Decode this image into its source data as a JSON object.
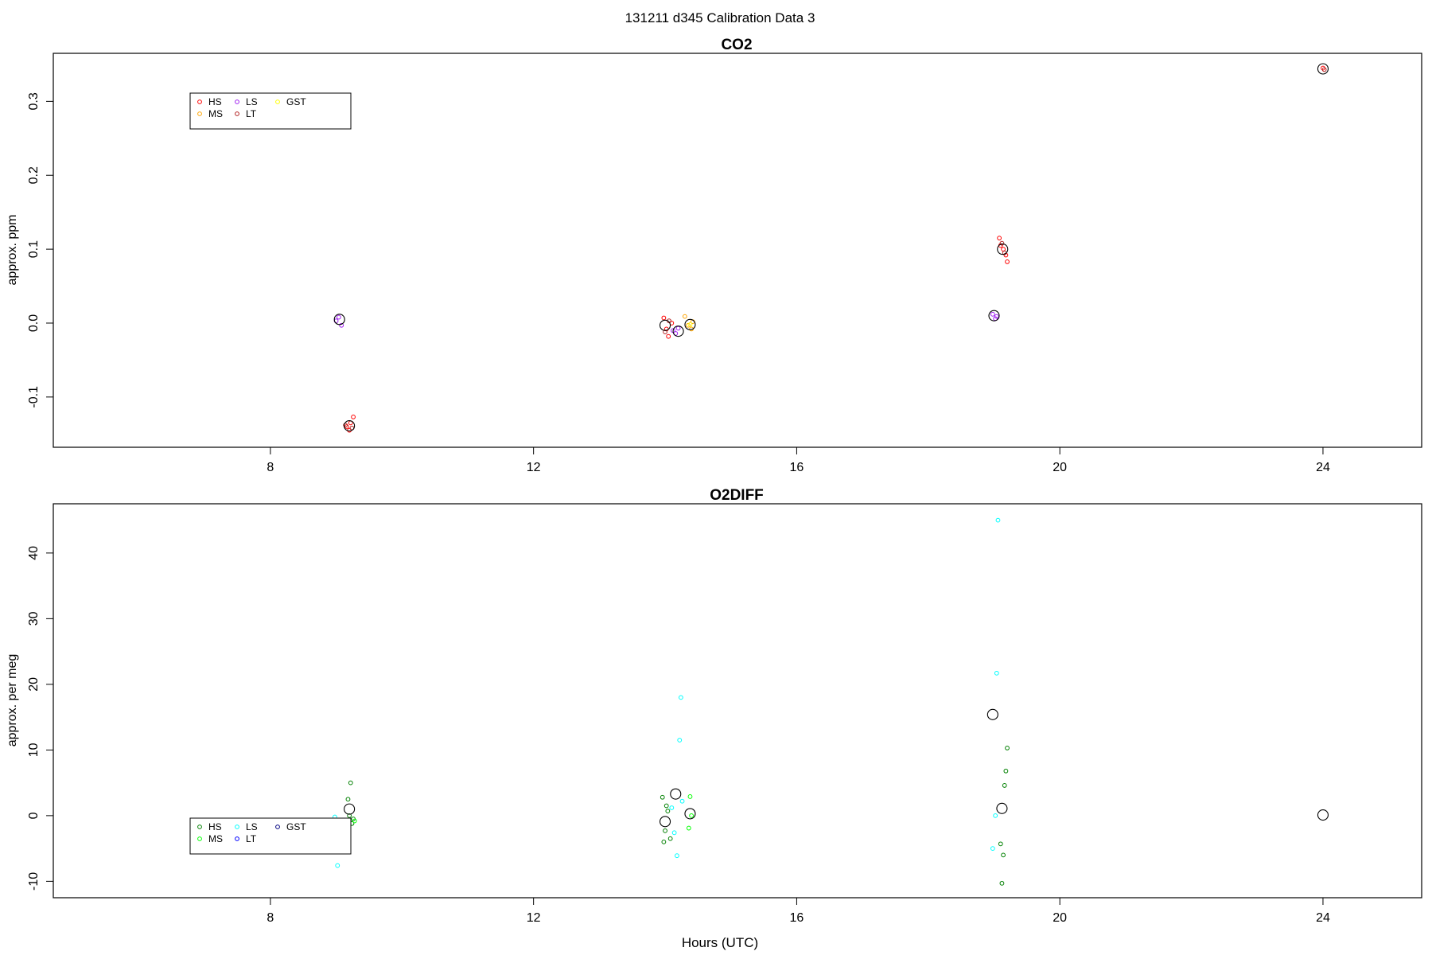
{
  "figure": {
    "suptitle": "131211   d345   Calibration Data 3",
    "xlabel": "Hours (UTC)"
  },
  "chart_data": [
    {
      "type": "scatter",
      "title": "CO2",
      "xlabel": "",
      "ylabel": "approx. ppm",
      "xlim": [
        4.7,
        25.5
      ],
      "ylim": [
        -0.168,
        0.365
      ],
      "xticks": [
        8,
        12,
        16,
        20,
        24
      ],
      "yticks": [
        -0.1,
        0.0,
        0.1,
        0.2,
        0.3
      ],
      "ytick_labels": [
        "-0.1",
        "0.0",
        "0.1",
        "0.2",
        "0.3"
      ],
      "grid": false,
      "legend": {
        "placement": "upper-left",
        "entries": [
          {
            "label": "HS",
            "color": "#ff0000"
          },
          {
            "label": "MS",
            "color": "#ffa500"
          },
          {
            "label": "LS",
            "color": "#a020f0"
          },
          {
            "label": "LT",
            "color": "#b22222"
          },
          {
            "label": "GST",
            "color": "#ffff00"
          }
        ]
      },
      "series": [
        {
          "label": "HS",
          "color": "#ff0000",
          "x": [
            9.16,
            9.2,
            9.22,
            9.26,
            13.98,
            14.02,
            14.05,
            14.1,
            19.08,
            19.1,
            19.14,
            19.18,
            19.2,
            24.0
          ],
          "y": [
            -0.14,
            -0.145,
            -0.135,
            -0.127,
            0.007,
            -0.008,
            -0.018,
            0.0,
            0.115,
            0.105,
            0.1,
            0.092,
            0.083,
            0.345
          ]
        },
        {
          "label": "MS",
          "color": "#ffa500",
          "x": [
            14.3,
            14.35,
            14.4,
            14.42
          ],
          "y": [
            0.009,
            -0.003,
            -0.008,
            0.002
          ]
        },
        {
          "label": "LS",
          "color": "#a020f0",
          "x": [
            9.0,
            9.04,
            9.08,
            14.12,
            14.16,
            14.2,
            18.98,
            19.02,
            19.04
          ],
          "y": [
            0.003,
            0.008,
            -0.003,
            -0.01,
            -0.014,
            -0.007,
            0.012,
            0.006,
            0.009
          ]
        },
        {
          "label": "LT",
          "color": "#b22222",
          "x": [
            9.14,
            9.24,
            14.0,
            14.06,
            19.12,
            19.16,
            24.02
          ],
          "y": [
            -0.138,
            -0.142,
            -0.012,
            0.003,
            0.108,
            0.095,
            0.343
          ]
        },
        {
          "label": "GST",
          "color": "#ffff00",
          "x": [
            14.38
          ],
          "y": [
            -0.002
          ]
        }
      ],
      "means": {
        "color": "#000000",
        "x": [
          9.05,
          9.2,
          14.0,
          14.2,
          14.38,
          19.0,
          19.13,
          24.0
        ],
        "y": [
          0.005,
          -0.139,
          -0.003,
          -0.011,
          -0.002,
          0.01,
          0.1,
          0.344
        ]
      }
    },
    {
      "type": "scatter",
      "title": "O2DIFF",
      "xlabel": "Hours (UTC)",
      "ylabel": "approx. per meg",
      "xlim": [
        4.7,
        25.5
      ],
      "ylim": [
        -12.5,
        47.5
      ],
      "xticks": [
        8,
        12,
        16,
        20,
        24
      ],
      "yticks": [
        -10,
        0,
        10,
        20,
        30,
        40
      ],
      "ytick_labels": [
        "-10",
        "0",
        "10",
        "20",
        "30",
        "40"
      ],
      "grid": false,
      "legend": {
        "placement": "lower-left",
        "entries": [
          {
            "label": "HS",
            "color": "#008000"
          },
          {
            "label": "MS",
            "color": "#00ff00"
          },
          {
            "label": "LS",
            "color": "#00ffff"
          },
          {
            "label": "LT",
            "color": "#0000ff"
          },
          {
            "label": "GST",
            "color": "#000080"
          }
        ]
      },
      "series": [
        {
          "label": "HS",
          "color": "#008000",
          "x": [
            9.18,
            9.2,
            9.22,
            9.24,
            9.26,
            13.96,
            13.98,
            14.0,
            14.02,
            14.04,
            14.08,
            19.1,
            19.12,
            19.14,
            19.16,
            19.18,
            19.2
          ],
          "y": [
            2.5,
            0.0,
            5.0,
            -1.2,
            -0.5,
            2.8,
            -4.0,
            -2.3,
            1.5,
            0.7,
            -3.5,
            -4.3,
            -10.3,
            -6.0,
            4.6,
            6.8,
            10.3
          ]
        },
        {
          "label": "MS",
          "color": "#00ff00",
          "x": [
            9.28,
            14.36,
            14.38,
            14.4
          ],
          "y": [
            -0.8,
            -1.9,
            2.9,
            0.0
          ]
        },
        {
          "label": "LS",
          "color": "#00ffff",
          "x": [
            8.98,
            9.02,
            9.06,
            9.1,
            14.1,
            14.14,
            14.18,
            14.22,
            14.24,
            14.26,
            18.98,
            19.02,
            19.04,
            19.06
          ],
          "y": [
            -0.2,
            -7.6,
            -2.0,
            -3.2,
            1.2,
            -2.6,
            -6.1,
            11.5,
            18.0,
            2.2,
            -5.0,
            0.0,
            21.7,
            45.0
          ]
        },
        {
          "label": "LT",
          "color": "#0000ff",
          "x": [],
          "y": []
        },
        {
          "label": "GST",
          "color": "#000080",
          "x": [],
          "y": []
        }
      ],
      "means": {
        "color": "#000000",
        "x": [
          9.05,
          9.2,
          14.0,
          14.16,
          14.38,
          18.98,
          19.12,
          24.0
        ],
        "y": [
          -3.3,
          1.0,
          -0.9,
          3.3,
          0.3,
          15.4,
          1.1,
          0.1
        ]
      }
    }
  ]
}
